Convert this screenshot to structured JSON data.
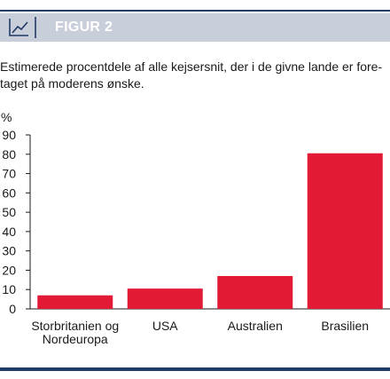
{
  "header": {
    "title": "FIGUR 2",
    "icon": "line-chart-icon"
  },
  "caption": {
    "line1": "Estimerede procentdele af alle kejsersnit, der i de givne lande er fore-",
    "line2": "taget på moderens ønske."
  },
  "chart_data": {
    "type": "bar",
    "ylabel": "%",
    "xlabel": "",
    "ylim": [
      0,
      90
    ],
    "yticks": [
      0,
      10,
      20,
      30,
      40,
      50,
      60,
      70,
      80,
      90
    ],
    "grid": false,
    "categories": [
      [
        "Storbritanien og",
        "Nordeuropa"
      ],
      [
        "USA"
      ],
      [
        "Australien"
      ],
      [
        "Brasilien"
      ]
    ],
    "values": [
      7,
      10.5,
      17,
      80.5
    ],
    "bar_color": "#e21a36"
  },
  "colors": {
    "accent": "#1f3a64",
    "header_band": "#c9cfda"
  }
}
